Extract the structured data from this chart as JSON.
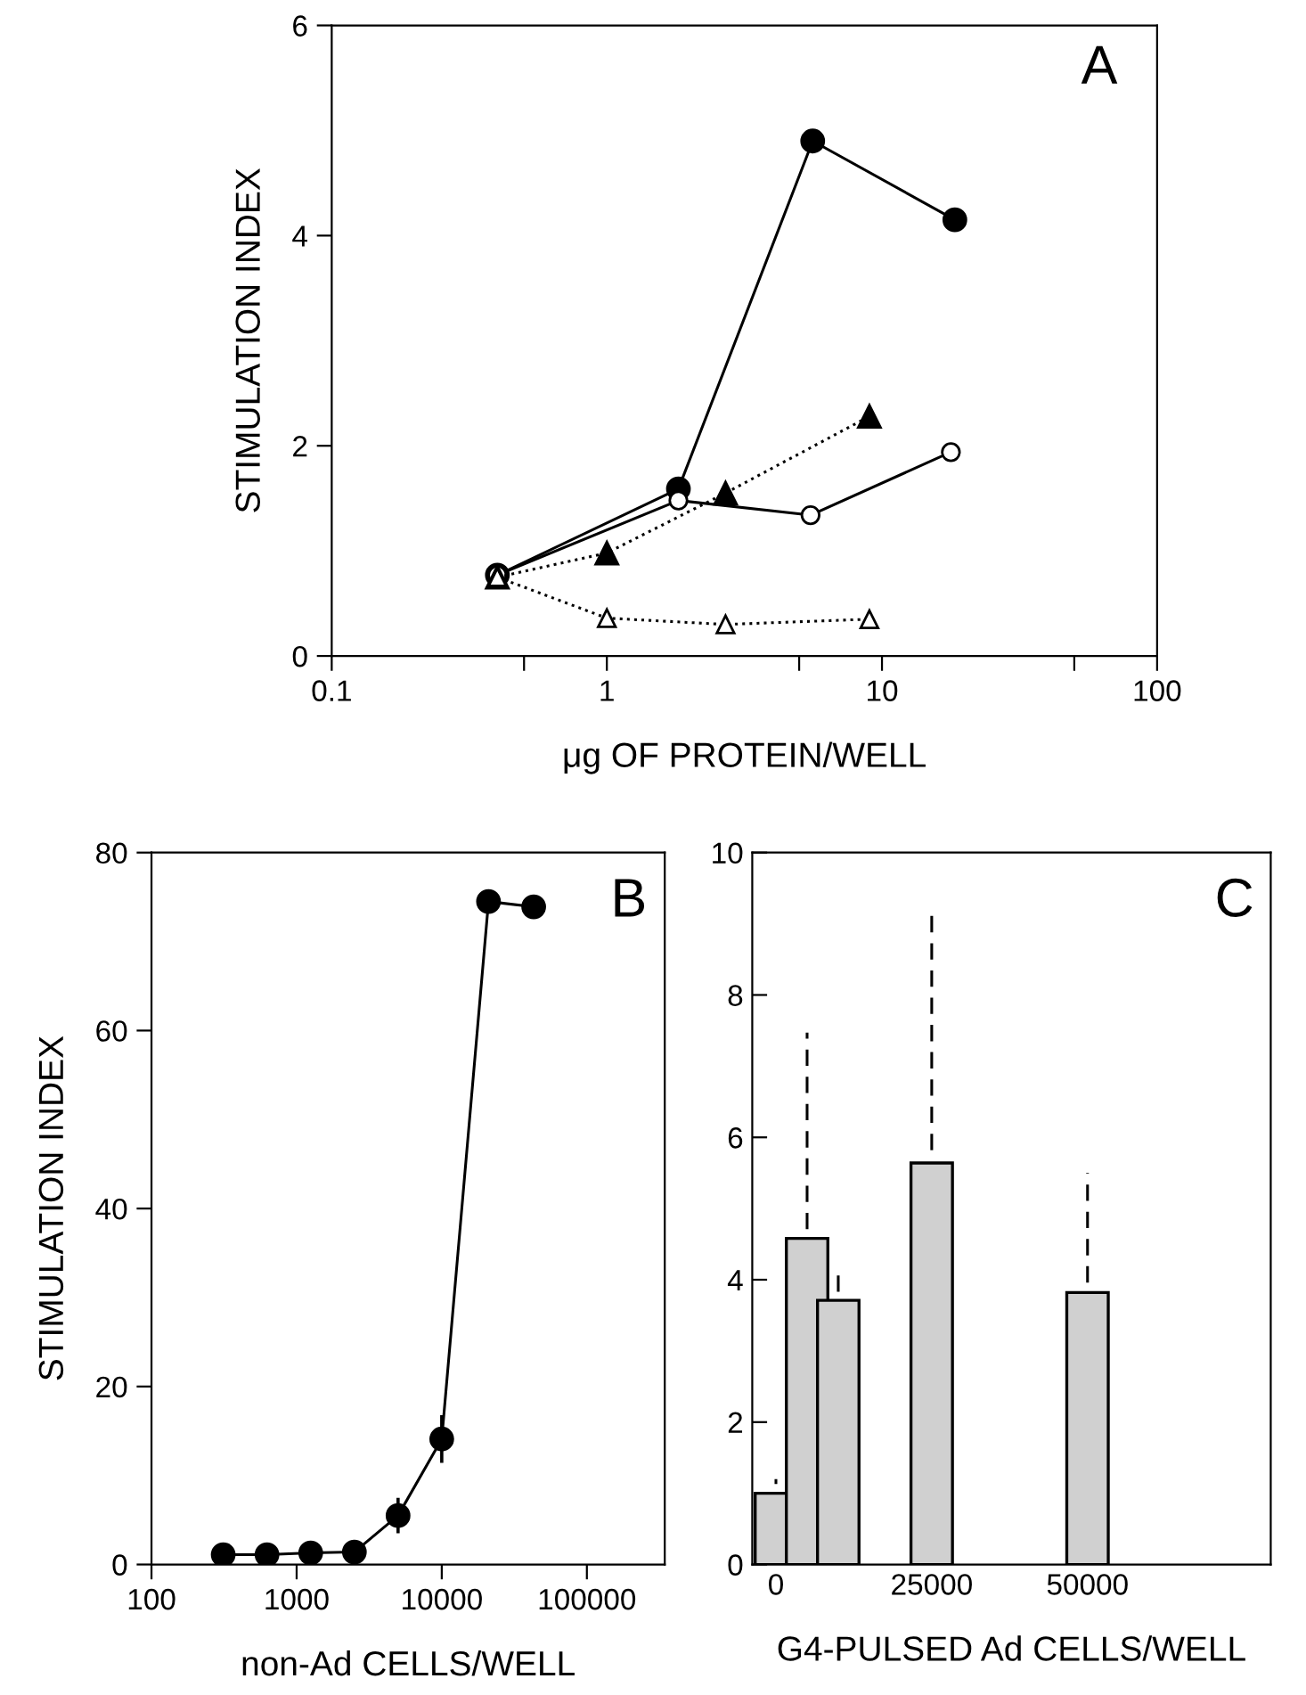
{
  "chart_data": [
    {
      "type": "line",
      "xlabel": "μg OF PROTEIN/WELL",
      "ylabel": "STIMULATION INDEX",
      "annotations": [
        "A"
      ],
      "log": "x",
      "xlim": [
        0.1,
        100
      ],
      "xticks": [
        {
          "value": 0.1,
          "label": "0.1"
        },
        {
          "value": 0.5,
          "label": null
        },
        1,
        {
          "value": 5,
          "label": null
        },
        10,
        {
          "value": 50,
          "label": null
        },
        100
      ],
      "ylim": [
        0,
        6
      ],
      "yticks": [
        0,
        2,
        4,
        6
      ],
      "grid": false,
      "legend": false,
      "series": [
        {
          "color": "#000000",
          "marker": "circle",
          "line_style": "solid",
          "x": [
            0.4,
            1.82,
            5.6,
            18.4
          ],
          "values": [
            0.77,
            1.59,
            4.9,
            4.15
          ]
        },
        {
          "color": "#ffffff",
          "marker": "circle",
          "line_style": "solid",
          "x": [
            0.4,
            1.82,
            5.5,
            17.8
          ],
          "values": [
            0.77,
            1.48,
            1.34,
            1.94
          ]
        },
        {
          "color": "#000000",
          "marker": "triangle",
          "line_style": "dotted",
          "x": [
            0.4,
            1.0,
            2.7,
            9.0
          ],
          "values": [
            0.75,
            0.98,
            1.55,
            2.28
          ]
        },
        {
          "color": "#ffffff",
          "marker": "triangle",
          "line_style": "dotted",
          "x": [
            0.4,
            1.0,
            2.7,
            9.0
          ],
          "values": [
            0.75,
            0.36,
            0.3,
            0.35
          ]
        }
      ]
    },
    {
      "type": "line",
      "xlabel": "non-Ad CELLS/WELL",
      "ylabel": "STIMULATION INDEX",
      "annotations": [
        "B"
      ],
      "log": "x",
      "xlim": [
        100,
        344000
      ],
      "xticks": [
        100,
        1000,
        10000,
        100000
      ],
      "ylim": [
        0,
        80
      ],
      "yticks": [
        0,
        20,
        40,
        60,
        80
      ],
      "grid": false,
      "legend": false,
      "series": [
        {
          "color": "#000000",
          "marker": "circle",
          "line_style": "solid",
          "x": [
            312,
            625,
            1250,
            2500,
            5000,
            10000,
            21000,
            43000
          ],
          "values": [
            1.1,
            1.1,
            1.3,
            1.4,
            5.5,
            14.1,
            74.5,
            73.9
          ],
          "errors": [
            null,
            null,
            null,
            null,
            1.8,
            2.5,
            null,
            null
          ]
        }
      ]
    },
    {
      "type": "bar",
      "xlabel": "G4-PULSED Ad CELLS/WELL",
      "annotations": [
        "C"
      ],
      "xlim": [
        -3800,
        79400
      ],
      "xticks": [
        0,
        25000,
        50000
      ],
      "ylim": [
        0,
        10
      ],
      "yticks": [
        0,
        2,
        4,
        6,
        8,
        10
      ],
      "grid": false,
      "legend": false,
      "x": [
        0,
        5000,
        10000,
        25000,
        50000
      ],
      "values": [
        1.0,
        4.58,
        3.71,
        5.64,
        3.82
      ],
      "color": "#d0d0d0",
      "errors": [
        [
          1.13,
          1.2
        ],
        [
          4.71,
          7.47
        ],
        [
          3.83,
          4.08
        ],
        [
          5.82,
          9.18
        ],
        [
          3.96,
          5.5
        ]
      ]
    }
  ]
}
